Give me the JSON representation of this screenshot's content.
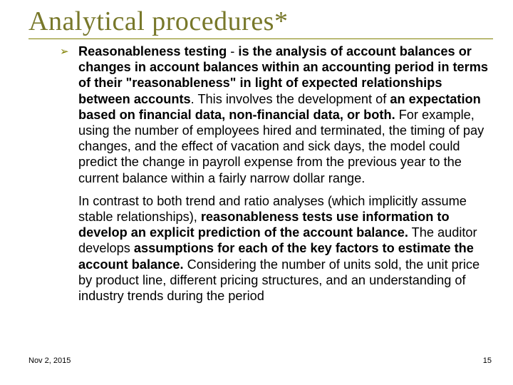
{
  "title": "Analytical procedures*",
  "bullet_glyph": "➢",
  "para1_parts": [
    {
      "t": "Reasonableness testing",
      "b": true
    },
    {
      "t": " - ",
      "b": false
    },
    {
      "t": "is the analysis of account balances or changes in account balances within an accounting period in terms of their \"reasonableness\" in light of expected relationships between accounts",
      "b": true
    },
    {
      "t": ". This involves the development of ",
      "b": false
    },
    {
      "t": "an expectation based on financial data, non-financial data, or both.",
      "b": true
    },
    {
      "t": " For example, using the number of employees hired and terminated, the timing of pay changes, and the effect of vacation and sick days, the model could predict the change in payroll expense from the previous year to the current balance within a fairly narrow dollar range.",
      "b": false
    }
  ],
  "para2_parts": [
    {
      "t": "In contrast to both trend and ratio analyses (which implicitly assume stable relationships), ",
      "b": false
    },
    {
      "t": "reasonableness tests use information to develop an explicit prediction of the account balance.",
      "b": true
    },
    {
      "t": " The auditor develops ",
      "b": false
    },
    {
      "t": "assumptions for each of the key factors to estimate the account balance.",
      "b": true
    },
    {
      "t": " Considering the number of units sold, the unit price by product line, different pricing structures, and an understanding of industry trends during the period",
      "b": false
    }
  ],
  "footer_date": "Nov 2, 2015",
  "footer_page": "15",
  "colors": {
    "title": "#78782a",
    "rule": "#808000",
    "bullet": "#808000",
    "body": "#000000",
    "background": "#ffffff"
  }
}
